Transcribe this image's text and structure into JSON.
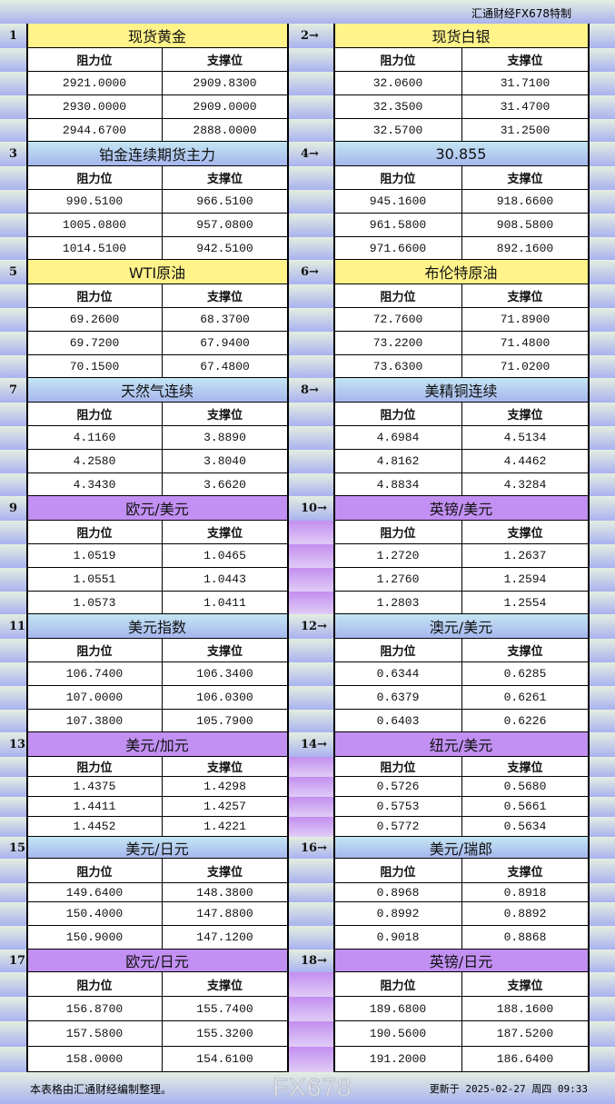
{
  "header": {
    "brand": "汇通财经FX678特制"
  },
  "colors": {
    "yellow": "#fff38a",
    "blue": "#a6b6ee",
    "purple": "#c290f2"
  },
  "blocks": [
    {
      "left": {
        "num": "1",
        "title": "现货黄金",
        "color": "yellow",
        "headers": [
          "阻力位",
          "支撑位"
        ],
        "rows": [
          [
            "2921.0000",
            "2909.8300"
          ],
          [
            "2930.0000",
            "2909.0000"
          ],
          [
            "2944.6700",
            "2888.0000"
          ]
        ]
      },
      "right": {
        "num": "2→",
        "title": "现货白银",
        "color": "yellow",
        "headers": [
          "阻力位",
          "支撑位"
        ],
        "rows": [
          [
            "32.0600",
            "31.7100"
          ],
          [
            "32.3500",
            "31.4700"
          ],
          [
            "32.5700",
            "31.2500"
          ]
        ]
      }
    },
    {
      "left": {
        "num": "3",
        "title": "铂金连续期货主力",
        "color": "blue",
        "headers": [
          "阻力位",
          "支撑位"
        ],
        "rows": [
          [
            "990.5100",
            "966.5100"
          ],
          [
            "1005.0800",
            "957.0800"
          ],
          [
            "1014.5100",
            "942.5100"
          ]
        ]
      },
      "right": {
        "num": "4→",
        "title": "30.855",
        "color": "blue",
        "headers": [
          "阻力位",
          "支撑位"
        ],
        "rows": [
          [
            "945.1600",
            "918.6600"
          ],
          [
            "961.5800",
            "908.5800"
          ],
          [
            "971.6600",
            "892.1600"
          ]
        ]
      }
    },
    {
      "left": {
        "num": "5",
        "title": "WTI原油",
        "color": "yellow",
        "headers": [
          "阻力位",
          "支撑位"
        ],
        "rows": [
          [
            "69.2600",
            "68.3700"
          ],
          [
            "69.7200",
            "67.9400"
          ],
          [
            "70.1500",
            "67.4800"
          ]
        ]
      },
      "right": {
        "num": "6→",
        "title": "布伦特原油",
        "color": "yellow",
        "headers": [
          "阻力位",
          "支撑位"
        ],
        "rows": [
          [
            "72.7600",
            "71.8900"
          ],
          [
            "73.2200",
            "71.4800"
          ],
          [
            "73.6300",
            "71.0200"
          ]
        ]
      }
    },
    {
      "left": {
        "num": "7",
        "title": "天然气连续",
        "color": "blue",
        "headers": [
          "阻力位",
          "支撑位"
        ],
        "rows": [
          [
            "4.1160",
            "3.8890"
          ],
          [
            "4.2580",
            "3.8040"
          ],
          [
            "4.3430",
            "3.6620"
          ]
        ]
      },
      "right": {
        "num": "8→",
        "title": "美精铜连续",
        "color": "blue",
        "headers": [
          "阻力位",
          "支撑位"
        ],
        "rows": [
          [
            "4.6984",
            "4.5134"
          ],
          [
            "4.8162",
            "4.4462"
          ],
          [
            "4.8834",
            "4.3284"
          ]
        ]
      }
    },
    {
      "left": {
        "num": "9",
        "title": "欧元/美元",
        "color": "purple",
        "headers": [
          "阻力位",
          "支撑位"
        ],
        "rows": [
          [
            "1.0519",
            "1.0465"
          ],
          [
            "1.0551",
            "1.0443"
          ],
          [
            "1.0573",
            "1.0411"
          ]
        ]
      },
      "right": {
        "num": "10→",
        "title": "英镑/美元",
        "color": "purple",
        "headers": [
          "阻力位",
          "支撑位"
        ],
        "rows": [
          [
            "1.2720",
            "1.2637"
          ],
          [
            "1.2760",
            "1.2594"
          ],
          [
            "1.2803",
            "1.2554"
          ]
        ]
      }
    },
    {
      "left": {
        "num": "11",
        "title": "美元指数",
        "color": "blue",
        "headers": [
          "阻力位",
          "支撑位"
        ],
        "rows": [
          [
            "106.7400",
            "106.3400"
          ],
          [
            "107.0000",
            "106.0300"
          ],
          [
            "107.3800",
            "105.7900"
          ]
        ]
      },
      "right": {
        "num": "12→",
        "title": "澳元/美元",
        "color": "blue",
        "headers": [
          "阻力位",
          "支撑位"
        ],
        "rows": [
          [
            "0.6344",
            "0.6285"
          ],
          [
            "0.6379",
            "0.6261"
          ],
          [
            "0.6403",
            "0.6226"
          ]
        ]
      }
    },
    {
      "left": {
        "num": "13",
        "title": "美元/加元",
        "color": "purple",
        "headers": [
          "阻力位",
          "支撑位"
        ],
        "rows": [
          [
            "1.4375",
            "1.4298"
          ],
          [
            "1.4411",
            "1.4257"
          ],
          [
            "1.4452",
            "1.4221"
          ]
        ]
      },
      "right": {
        "num": "14→",
        "title": "纽元/美元",
        "color": "purple",
        "headers": [
          "阻力位",
          "支撑位"
        ],
        "rows": [
          [
            "0.5726",
            "0.5680"
          ],
          [
            "0.5753",
            "0.5661"
          ],
          [
            "0.5772",
            "0.5634"
          ]
        ]
      }
    },
    {
      "left": {
        "num": "15",
        "title": "美元/日元",
        "color": "blue",
        "headers": [
          "阻力位",
          "支撑位"
        ],
        "rows": [
          [
            "149.6400",
            "148.3800"
          ],
          [
            "150.4000",
            "147.8800"
          ],
          [
            "150.9000",
            "147.1200"
          ]
        ]
      },
      "right": {
        "num": "16→",
        "title": "美元/瑞郎",
        "color": "blue",
        "headers": [
          "阻力位",
          "支撑位"
        ],
        "rows": [
          [
            "0.8968",
            "0.8918"
          ],
          [
            "0.8992",
            "0.8892"
          ],
          [
            "0.9018",
            "0.8868"
          ]
        ]
      }
    },
    {
      "left": {
        "num": "17",
        "title": "欧元/日元",
        "color": "purple",
        "headers": [
          "阻力位",
          "支撑位"
        ],
        "rows": [
          [
            "156.8700",
            "155.7400"
          ],
          [
            "157.5800",
            "155.3200"
          ],
          [
            "158.0000",
            "154.6100"
          ]
        ]
      },
      "right": {
        "num": "18→",
        "title": "英镑/日元",
        "color": "purple",
        "headers": [
          "阻力位",
          "支撑位"
        ],
        "rows": [
          [
            "189.6800",
            "188.1600"
          ],
          [
            "190.5600",
            "187.5200"
          ],
          [
            "191.2000",
            "186.6400"
          ]
        ]
      }
    }
  ],
  "footer": {
    "note": "本表格由汇通财经编制整理。",
    "updated": "更新于 2025-02-27 周四 09:33",
    "watermark": "FX678"
  }
}
